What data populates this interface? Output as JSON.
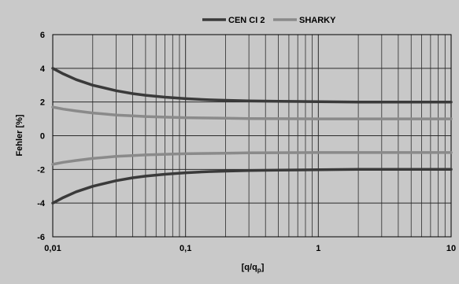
{
  "chart_data": {
    "type": "line",
    "title": "",
    "xlabel": "[q/q_p]",
    "xlabel_main": "[q/q",
    "xlabel_sub": "p",
    "xlabel_close": "]",
    "ylabel": "Fehler [%]",
    "xscale": "log",
    "xlim": [
      0.01,
      10
    ],
    "ylim": [
      -6,
      6
    ],
    "x_ticks": [
      0.01,
      0.1,
      1,
      10
    ],
    "x_tick_labels": [
      "0,01",
      "0,1",
      "1",
      "10"
    ],
    "y_ticks": [
      -6,
      -4,
      -2,
      0,
      2,
      4,
      6
    ],
    "y_tick_labels": [
      "-6",
      "-4",
      "-2",
      "0",
      "2",
      "4",
      "6"
    ],
    "grid": true,
    "legend_position": "top-center",
    "plot_background": "#c8c8c8",
    "page_background": "#c9c9c9",
    "grid_color": "#2b2b2b",
    "x": [
      0.01,
      0.012,
      0.015,
      0.02,
      0.03,
      0.04,
      0.05,
      0.07,
      0.1,
      0.15,
      0.2,
      0.3,
      0.5,
      1,
      2,
      5,
      10
    ],
    "series": [
      {
        "name": "CEN CI 2",
        "color": "#3a3a3a",
        "values": [
          4.0,
          3.67,
          3.33,
          3.0,
          2.67,
          2.5,
          2.4,
          2.29,
          2.2,
          2.13,
          2.1,
          2.07,
          2.04,
          2.02,
          2.0,
          2.0,
          2.0
        ]
      },
      {
        "name": "",
        "color": "#3a3a3a",
        "values": [
          -4.0,
          -3.67,
          -3.33,
          -3.0,
          -2.67,
          -2.5,
          -2.4,
          -2.29,
          -2.2,
          -2.13,
          -2.1,
          -2.07,
          -2.04,
          -2.02,
          -2.0,
          -2.0,
          -2.0
        ]
      },
      {
        "name": "SHARKY",
        "color": "#8a8a8a",
        "values": [
          1.7,
          1.58,
          1.47,
          1.35,
          1.23,
          1.18,
          1.14,
          1.1,
          1.07,
          1.05,
          1.04,
          1.02,
          1.01,
          1.0,
          1.0,
          1.0,
          1.0
        ]
      },
      {
        "name": "",
        "color": "#8a8a8a",
        "values": [
          -1.7,
          -1.58,
          -1.47,
          -1.35,
          -1.23,
          -1.18,
          -1.14,
          -1.1,
          -1.07,
          -1.05,
          -1.04,
          -1.02,
          -1.01,
          -1.0,
          -1.0,
          -1.0,
          -1.0
        ]
      }
    ]
  }
}
